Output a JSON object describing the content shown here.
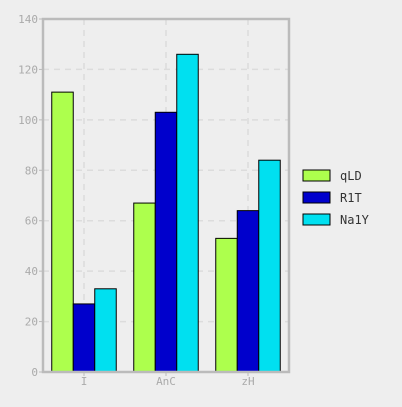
{
  "chart_data": {
    "type": "bar",
    "categories": [
      "I",
      "AnC",
      "zH"
    ],
    "series": [
      {
        "name": "qLD",
        "values": [
          111,
          67,
          53
        ],
        "color": "#adff4d"
      },
      {
        "name": "R1T",
        "values": [
          27,
          103,
          64
        ],
        "color": "#0000cc"
      },
      {
        "name": "Na1Y",
        "values": [
          33,
          126,
          84
        ],
        "color": "#00e0f0"
      }
    ],
    "ylim": [
      0,
      140
    ],
    "yticks": [
      0,
      20,
      40,
      60,
      80,
      100,
      120,
      140
    ],
    "grid": true,
    "legend_position": "right"
  },
  "colors": {
    "background": "#eeeeee",
    "axis": "#bbbbbb",
    "grid": "#dcdcdc",
    "tick_text": "#aaaaaa",
    "bar_edge": "#000000",
    "legend_text": "#333333"
  }
}
